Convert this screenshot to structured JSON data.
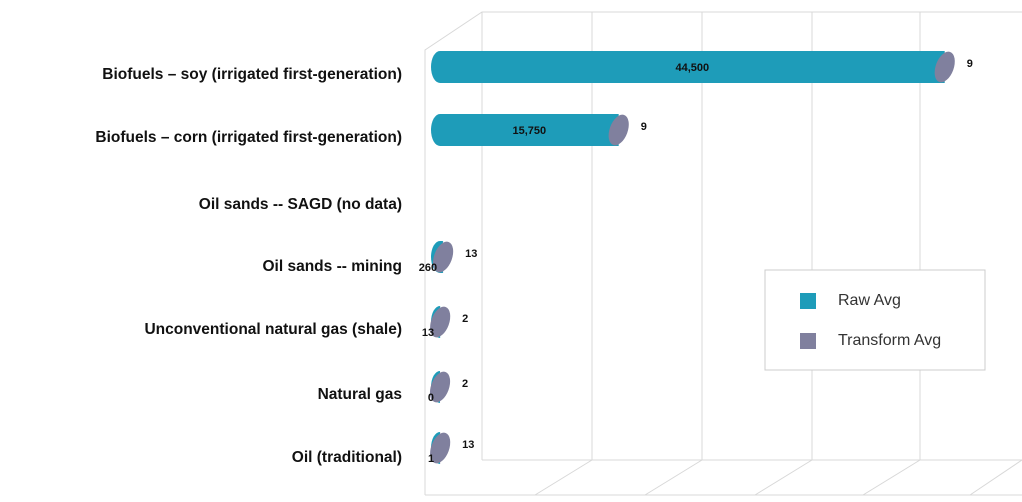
{
  "chart_data": {
    "type": "bar3d_horizontal",
    "categories": [
      "Biofuels – soy (irrigated first-generation)",
      "Biofuels – corn (irrigated first-generation)",
      "Oil sands -- SAGD (no data)",
      "Oil sands -- mining",
      "Unconventional natural gas (shale)",
      "Natural gas",
      "Oil (traditional)"
    ],
    "series": [
      {
        "name": "Raw Avg",
        "color": "#1e9cb9",
        "values": [
          44500,
          15750,
          null,
          260,
          13,
          0,
          1
        ],
        "value_labels": [
          "44,500",
          "15,750",
          null,
          "260",
          "13",
          "0",
          "1"
        ]
      },
      {
        "name": "Transform Avg",
        "color": "#80809e",
        "values": [
          9,
          9,
          null,
          13,
          2,
          2,
          13
        ]
      }
    ],
    "xlim": [
      0,
      50000
    ],
    "legend": "right"
  }
}
